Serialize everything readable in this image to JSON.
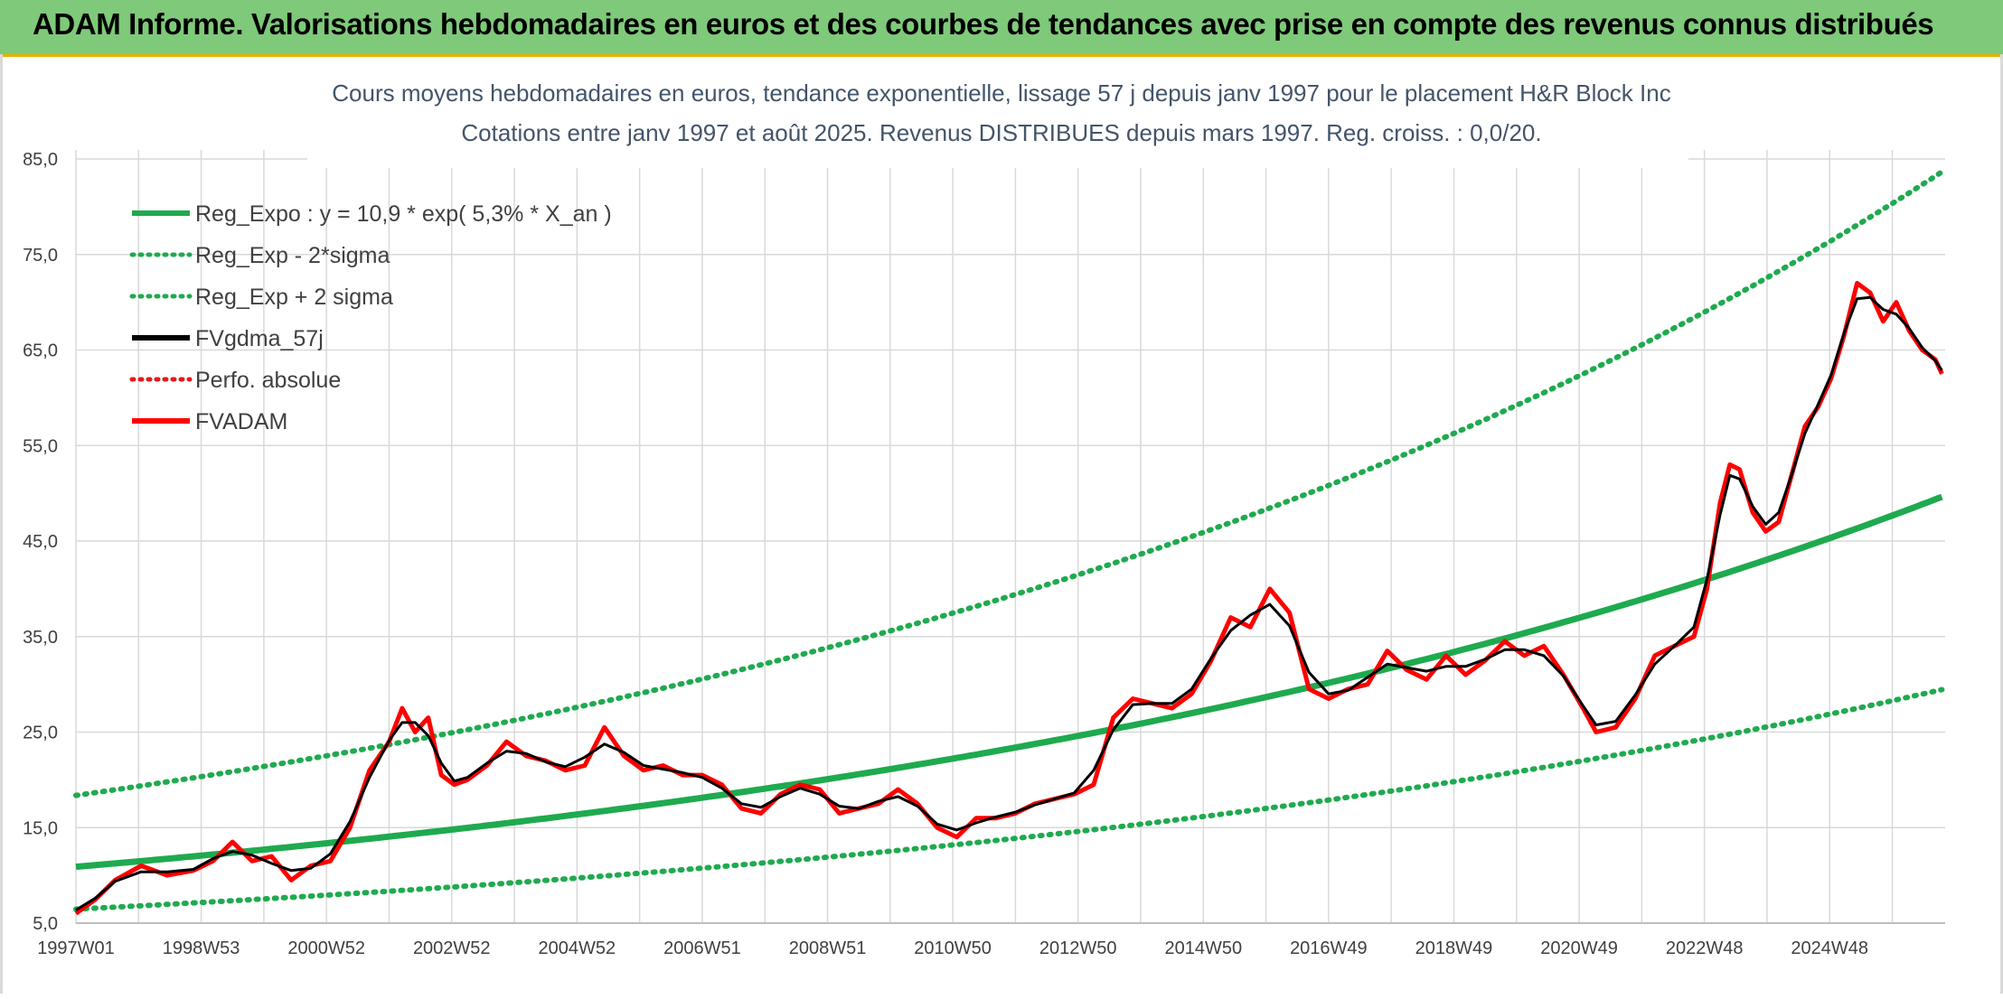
{
  "header": {
    "title": "ADAM Informe. Valorisations hebdomadaires en euros et des courbes de tendances avec prise en compte des revenus connus distribués"
  },
  "chart_data": {
    "type": "line",
    "title_line1": "Cours moyens hebdomadaires en euros, tendance exponentielle, lissage 57 j depuis janv 1997 pour le placement H&R Block Inc",
    "title_line2": "Cotations entre janv 1997 et août 2025. Revenus DISTRIBUES depuis mars 1997. Reg. croiss. : 0,0/20.",
    "x_ticks": [
      "1997W01",
      "1998W53",
      "2000W52",
      "2002W52",
      "2004W52",
      "2006W51",
      "2008W51",
      "2010W50",
      "2012W50",
      "2014W50",
      "2016W49",
      "2018W49",
      "2020W49",
      "2022W48",
      "2024W48"
    ],
    "xlim": [
      1997.0,
      2025.65
    ],
    "y_ticks": [
      "5,0",
      "15,0",
      "25,0",
      "35,0",
      "45,0",
      "55,0",
      "65,0",
      "75,0",
      "85,0"
    ],
    "ylim": [
      5,
      85
    ],
    "grid": true,
    "legend_position": "top-left",
    "regression": {
      "a": 10.9,
      "rate": 0.053,
      "sigma_log": 0.261
    },
    "series": [
      {
        "name": "Reg_Expo : y = 10,9 * exp( 5,3% *  X_an )",
        "style": "solid",
        "color": "#1faa4f"
      },
      {
        "name": "Reg_Exp - 2*sigma",
        "style": "dotted",
        "color": "#1faa4f"
      },
      {
        "name": "Reg_Exp + 2 sigma",
        "style": "dotted",
        "color": "#1faa4f"
      },
      {
        "name": "FVgdma_57j",
        "style": "solid",
        "color": "#000000"
      },
      {
        "name": "Perfo. absolue",
        "style": "dotted",
        "color": "#e31a1c"
      },
      {
        "name": "FVADAM",
        "style": "solid",
        "color": "#ff0000"
      }
    ],
    "price_series": {
      "x": [
        1997.0,
        1997.3,
        1997.6,
        1998.0,
        1998.4,
        1998.8,
        1999.1,
        1999.4,
        1999.7,
        2000.0,
        2000.3,
        2000.6,
        2000.9,
        2001.2,
        2001.5,
        2001.8,
        2002.0,
        2002.2,
        2002.4,
        2002.6,
        2002.8,
        2003.0,
        2003.3,
        2003.6,
        2003.9,
        2004.2,
        2004.5,
        2004.8,
        2005.1,
        2005.4,
        2005.7,
        2006.0,
        2006.3,
        2006.6,
        2006.9,
        2007.2,
        2007.5,
        2007.8,
        2008.1,
        2008.4,
        2008.7,
        2009.0,
        2009.3,
        2009.6,
        2009.9,
        2010.2,
        2010.5,
        2010.8,
        2011.1,
        2011.4,
        2011.7,
        2012.0,
        2012.3,
        2012.6,
        2012.9,
        2013.2,
        2013.5,
        2013.8,
        2014.1,
        2014.4,
        2014.7,
        2015.0,
        2015.3,
        2015.6,
        2015.9,
        2016.2,
        2016.5,
        2016.8,
        2017.1,
        2017.4,
        2017.7,
        2018.0,
        2018.3,
        2018.6,
        2018.9,
        2019.2,
        2019.5,
        2019.8,
        2020.1,
        2020.3,
        2020.6,
        2020.9,
        2021.2,
        2021.5,
        2021.8,
        2022.0,
        2022.2,
        2022.35,
        2022.5,
        2022.7,
        2022.9,
        2023.1,
        2023.3,
        2023.5,
        2023.7,
        2023.9,
        2024.1,
        2024.3,
        2024.5,
        2024.7,
        2024.9,
        2025.1,
        2025.3,
        2025.5,
        2025.6
      ],
      "y": [
        6.0,
        7.5,
        9.5,
        11.0,
        10.0,
        10.5,
        11.5,
        13.5,
        11.5,
        12.0,
        9.5,
        11.0,
        11.5,
        15.0,
        21.0,
        24.0,
        27.5,
        25.0,
        26.5,
        20.5,
        19.5,
        20.0,
        21.5,
        24.0,
        22.5,
        22.0,
        21.0,
        21.5,
        25.5,
        22.5,
        21.0,
        21.5,
        20.5,
        20.5,
        19.5,
        17.0,
        16.5,
        18.5,
        19.5,
        19.0,
        16.5,
        17.0,
        17.5,
        19.0,
        17.5,
        15.0,
        14.0,
        16.0,
        16.0,
        16.5,
        17.5,
        18.0,
        18.5,
        19.5,
        26.5,
        28.5,
        28.0,
        27.5,
        29.0,
        32.5,
        37.0,
        36.0,
        40.0,
        37.5,
        29.5,
        28.5,
        29.5,
        30.0,
        33.5,
        31.5,
        30.5,
        33.0,
        31.0,
        32.5,
        34.5,
        33.0,
        34.0,
        31.0,
        27.5,
        25.0,
        25.5,
        28.5,
        33.0,
        34.0,
        35.0,
        40.0,
        49.0,
        53.0,
        52.5,
        48.0,
        46.0,
        47.0,
        52.0,
        57.0,
        59.0,
        62.0,
        66.5,
        72.0,
        71.0,
        68.0,
        70.0,
        67.0,
        65.0,
        64.0,
        62.5
      ]
    }
  }
}
